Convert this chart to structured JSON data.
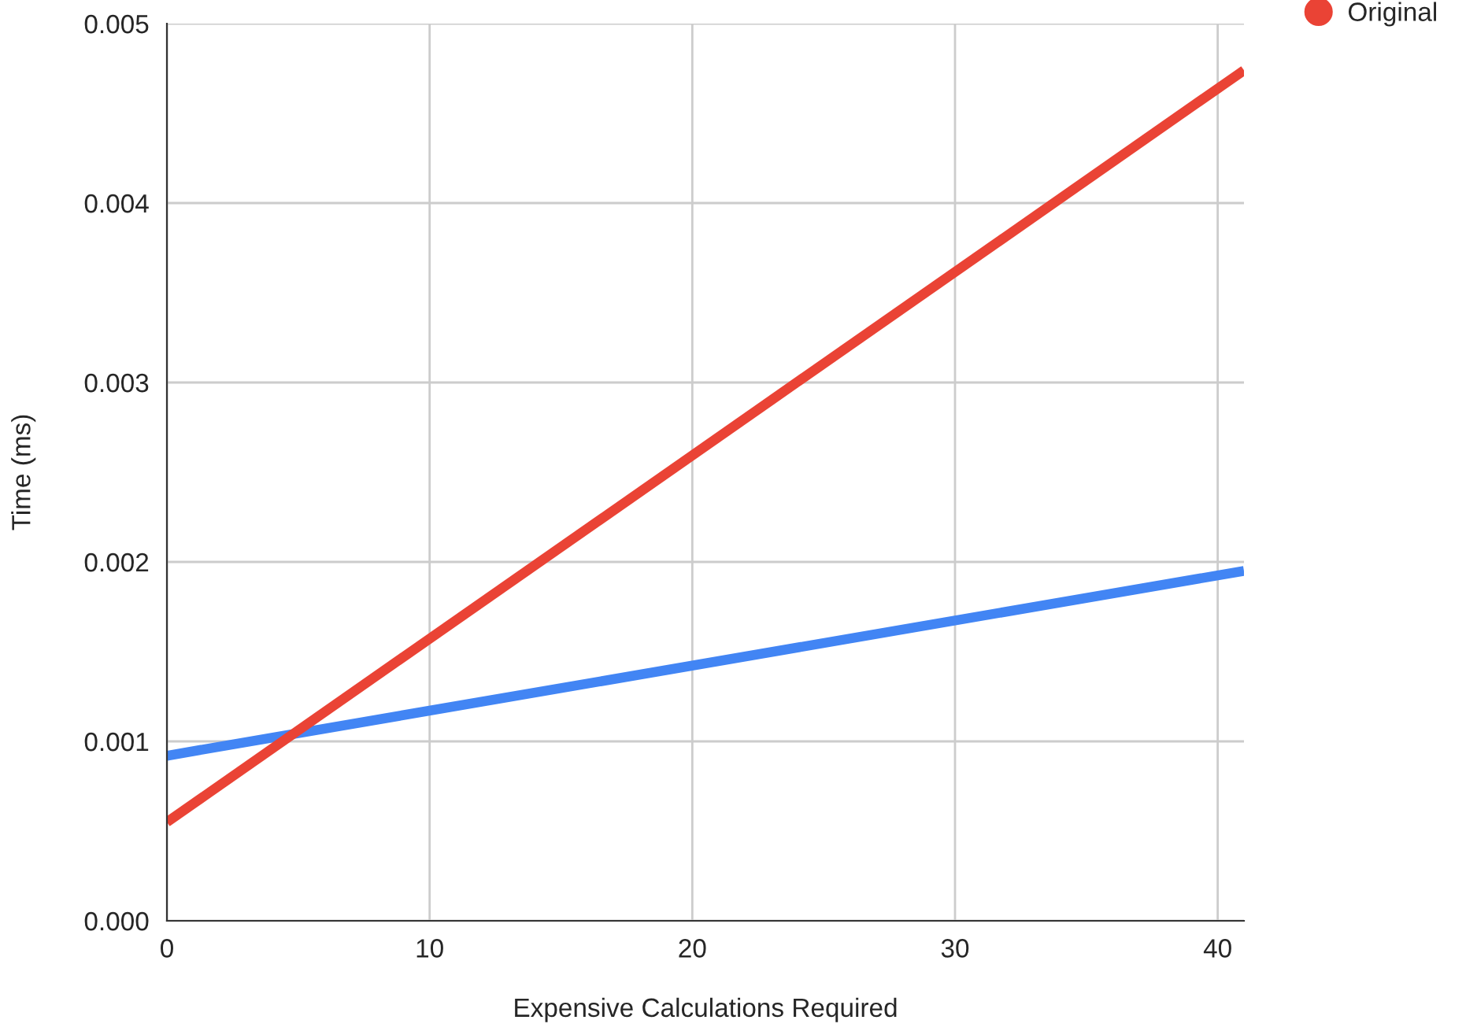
{
  "chart_data": {
    "type": "line",
    "xlabel": "Expensive Calculations Required",
    "ylabel": "Time (ms)",
    "x": [
      0,
      41
    ],
    "series": [
      {
        "color": "#4285f4",
        "values": [
          0.00092,
          0.00195
        ]
      },
      {
        "name": "Original",
        "color": "#ea4335",
        "values": [
          0.00055,
          0.00474
        ]
      }
    ],
    "xlim": [
      0,
      41
    ],
    "xticks": [
      0,
      10,
      20,
      30,
      40
    ],
    "ylim": [
      0,
      0.005
    ],
    "yticks": [
      {
        "value": 0,
        "label": "0.000"
      },
      {
        "value": 0.001,
        "label": "0.001"
      },
      {
        "value": 0.002,
        "label": "0.002"
      },
      {
        "value": 0.003,
        "label": "0.003"
      },
      {
        "value": 0.004,
        "label": "0.004"
      },
      {
        "value": 0.005,
        "label": "0.005"
      }
    ],
    "grid": true,
    "legend": "top right"
  }
}
